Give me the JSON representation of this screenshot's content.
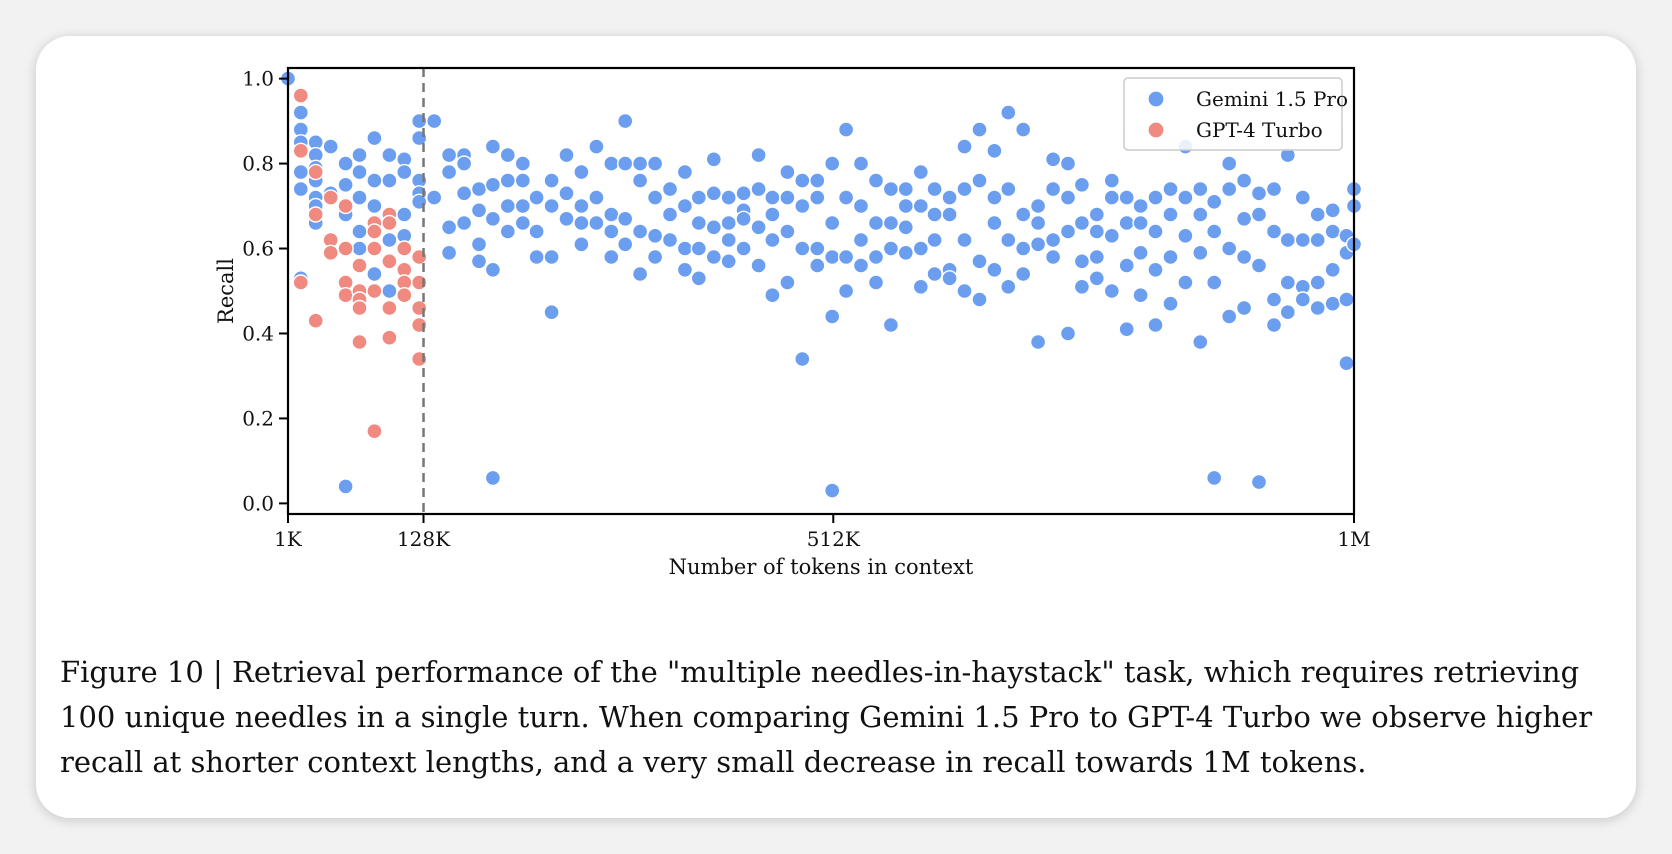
{
  "chart_data": {
    "type": "scatter",
    "xlabel": "Number of tokens in context",
    "ylabel": "Recall",
    "xlim": [
      1,
      1000
    ],
    "ylim": [
      -0.025,
      1.025
    ],
    "x_ticks": [
      1,
      128,
      512,
      1000
    ],
    "x_tick_labels": [
      "1K",
      "128K",
      "512K",
      "1M"
    ],
    "y_ticks": [
      0.0,
      0.2,
      0.4,
      0.6,
      0.8,
      1.0
    ],
    "y_tick_labels": [
      "0.0",
      "0.2",
      "0.4",
      "0.6",
      "0.8",
      "1.0"
    ],
    "grid": false,
    "legend_position": "top-right",
    "vertical_line": {
      "x": 128,
      "style": "dashed",
      "color": "#777777"
    },
    "series": [
      {
        "name": "Gemini 1.5 Pro",
        "color": "#6c9ef0",
        "x": [
          1,
          13,
          13,
          13,
          13,
          13,
          13,
          27,
          27,
          27,
          27,
          27,
          27,
          27,
          41,
          41,
          55,
          55,
          55,
          55,
          68,
          68,
          68,
          68,
          68,
          82,
          82,
          82,
          82,
          96,
          96,
          96,
          96,
          110,
          110,
          110,
          110,
          124,
          124,
          124,
          124,
          124,
          138,
          138,
          152,
          152,
          152,
          152,
          166,
          166,
          166,
          166,
          180,
          180,
          180,
          180,
          193,
          193,
          193,
          193,
          193,
          207,
          207,
          207,
          207,
          221,
          221,
          221,
          221,
          234,
          234,
          234,
          248,
          248,
          248,
          248,
          262,
          262,
          262,
          276,
          276,
          276,
          276,
          290,
          290,
          290,
          304,
          304,
          304,
          304,
          317,
          317,
          317,
          317,
          331,
          331,
          331,
          331,
          345,
          345,
          345,
          345,
          359,
          359,
          359,
          373,
          373,
          373,
          373,
          386,
          386,
          386,
          386,
          400,
          400,
          400,
          400,
          414,
          414,
          414,
          414,
          428,
          428,
          428,
          428,
          442,
          442,
          442,
          442,
          455,
          455,
          455,
          455,
          469,
          469,
          469,
          469,
          483,
          483,
          483,
          483,
          497,
          497,
          497,
          497,
          511,
          511,
          511,
          511,
          511,
          524,
          524,
          524,
          524,
          538,
          538,
          538,
          538,
          552,
          552,
          552,
          552,
          566,
          566,
          566,
          566,
          580,
          580,
          580,
          580,
          594,
          594,
          594,
          594,
          607,
          607,
          607,
          607,
          621,
          621,
          621,
          621,
          635,
          635,
          635,
          635,
          649,
          649,
          649,
          649,
          663,
          663,
          663,
          663,
          676,
          676,
          676,
          676,
          690,
          690,
          690,
          690,
          704,
          704,
          704,
          704,
          718,
          718,
          718,
          718,
          732,
          732,
          732,
          732,
          745,
          745,
          745,
          745,
          759,
          759,
          759,
          759,
          773,
          773,
          773,
          773,
          787,
          787,
          787,
          787,
          800,
          800,
          800,
          800,
          814,
          814,
          814,
          814,
          828,
          828,
          828,
          828,
          842,
          842,
          842,
          842,
          856,
          856,
          856,
          856,
          869,
          869,
          869,
          869,
          883,
          883,
          883,
          883,
          897,
          897,
          897,
          897,
          911,
          911,
          911,
          911,
          925,
          925,
          925,
          925,
          938,
          938,
          938,
          938,
          952,
          952,
          952,
          952,
          966,
          966,
          966,
          966,
          980,
          980,
          980,
          980,
          993,
          993,
          993,
          993,
          1000,
          1000,
          1000
        ],
        "y": [
          1.0,
          0.92,
          0.88,
          0.85,
          0.78,
          0.74,
          0.53,
          0.85,
          0.82,
          0.79,
          0.76,
          0.72,
          0.7,
          0.66,
          0.84,
          0.73,
          0.8,
          0.75,
          0.68,
          0.04,
          0.82,
          0.78,
          0.72,
          0.64,
          0.6,
          0.86,
          0.76,
          0.7,
          0.54,
          0.82,
          0.76,
          0.62,
          0.5,
          0.81,
          0.78,
          0.68,
          0.63,
          0.9,
          0.86,
          0.76,
          0.73,
          0.71,
          0.9,
          0.72,
          0.82,
          0.78,
          0.65,
          0.59,
          0.82,
          0.8,
          0.73,
          0.66,
          0.74,
          0.69,
          0.61,
          0.57,
          0.84,
          0.75,
          0.67,
          0.55,
          0.06,
          0.82,
          0.76,
          0.7,
          0.64,
          0.8,
          0.76,
          0.7,
          0.66,
          0.72,
          0.64,
          0.58,
          0.76,
          0.7,
          0.58,
          0.45,
          0.82,
          0.73,
          0.67,
          0.78,
          0.7,
          0.66,
          0.61,
          0.84,
          0.72,
          0.66,
          0.8,
          0.68,
          0.64,
          0.58,
          0.9,
          0.8,
          0.67,
          0.61,
          0.8,
          0.76,
          0.64,
          0.54,
          0.8,
          0.72,
          0.63,
          0.58,
          0.74,
          0.68,
          0.62,
          0.78,
          0.7,
          0.6,
          0.55,
          0.72,
          0.66,
          0.6,
          0.53,
          0.81,
          0.73,
          0.65,
          0.58,
          0.72,
          0.66,
          0.62,
          0.57,
          0.73,
          0.69,
          0.67,
          0.6,
          0.82,
          0.74,
          0.65,
          0.56,
          0.72,
          0.68,
          0.62,
          0.49,
          0.78,
          0.72,
          0.64,
          0.52,
          0.76,
          0.7,
          0.6,
          0.34,
          0.76,
          0.72,
          0.6,
          0.56,
          0.8,
          0.66,
          0.58,
          0.44,
          0.03,
          0.88,
          0.72,
          0.58,
          0.5,
          0.8,
          0.7,
          0.62,
          0.56,
          0.76,
          0.66,
          0.58,
          0.52,
          0.74,
          0.66,
          0.6,
          0.42,
          0.74,
          0.7,
          0.65,
          0.59,
          0.78,
          0.7,
          0.6,
          0.51,
          0.74,
          0.68,
          0.62,
          0.54,
          0.72,
          0.68,
          0.55,
          0.53,
          0.84,
          0.74,
          0.62,
          0.5,
          0.88,
          0.76,
          0.57,
          0.48,
          0.83,
          0.72,
          0.66,
          0.55,
          0.92,
          0.74,
          0.62,
          0.51,
          0.88,
          0.68,
          0.6,
          0.54,
          0.7,
          0.66,
          0.61,
          0.38,
          0.81,
          0.74,
          0.62,
          0.58,
          0.8,
          0.72,
          0.64,
          0.4,
          0.75,
          0.66,
          0.57,
          0.51,
          0.68,
          0.64,
          0.58,
          0.53,
          0.76,
          0.72,
          0.63,
          0.5,
          0.72,
          0.66,
          0.56,
          0.41,
          0.7,
          0.66,
          0.59,
          0.49,
          0.72,
          0.64,
          0.55,
          0.42,
          0.74,
          0.68,
          0.58,
          0.47,
          0.72,
          0.63,
          0.52,
          0.84,
          0.74,
          0.68,
          0.59,
          0.38,
          0.71,
          0.64,
          0.52,
          0.06,
          0.8,
          0.74,
          0.6,
          0.44,
          0.76,
          0.67,
          0.58,
          0.46,
          0.73,
          0.68,
          0.56,
          0.05,
          0.74,
          0.64,
          0.48,
          0.42,
          0.82,
          0.62,
          0.52,
          0.45,
          0.72,
          0.62,
          0.51,
          0.48,
          0.68,
          0.62,
          0.52,
          0.46,
          0.69,
          0.64,
          0.55,
          0.47,
          0.63,
          0.59,
          0.48,
          0.33,
          0.74,
          0.7,
          0.61
        ]
      },
      {
        "name": "GPT-4 Turbo",
        "color": "#f08a80",
        "x": [
          13,
          13,
          13,
          27,
          27,
          27,
          41,
          41,
          41,
          55,
          55,
          55,
          55,
          68,
          68,
          68,
          68,
          68,
          82,
          82,
          82,
          82,
          82,
          96,
          96,
          96,
          96,
          96,
          110,
          110,
          110,
          110,
          124,
          124,
          124,
          124,
          124
        ],
        "y": [
          0.96,
          0.83,
          0.52,
          0.78,
          0.68,
          0.43,
          0.72,
          0.62,
          0.59,
          0.7,
          0.6,
          0.52,
          0.49,
          0.56,
          0.5,
          0.48,
          0.46,
          0.38,
          0.66,
          0.64,
          0.6,
          0.5,
          0.17,
          0.68,
          0.66,
          0.57,
          0.46,
          0.39,
          0.6,
          0.55,
          0.52,
          0.49,
          0.58,
          0.52,
          0.46,
          0.42,
          0.34
        ]
      }
    ],
    "caption": "Figure 10 | Retrieval performance of the \"multiple needles-in-haystack\" task, which requires retrieving 100 unique needles in a single turn. When comparing Gemini 1.5 Pro to GPT-4 Turbo we observe higher recall at shorter context lengths, and a very small decrease in recall towards 1M tokens."
  }
}
